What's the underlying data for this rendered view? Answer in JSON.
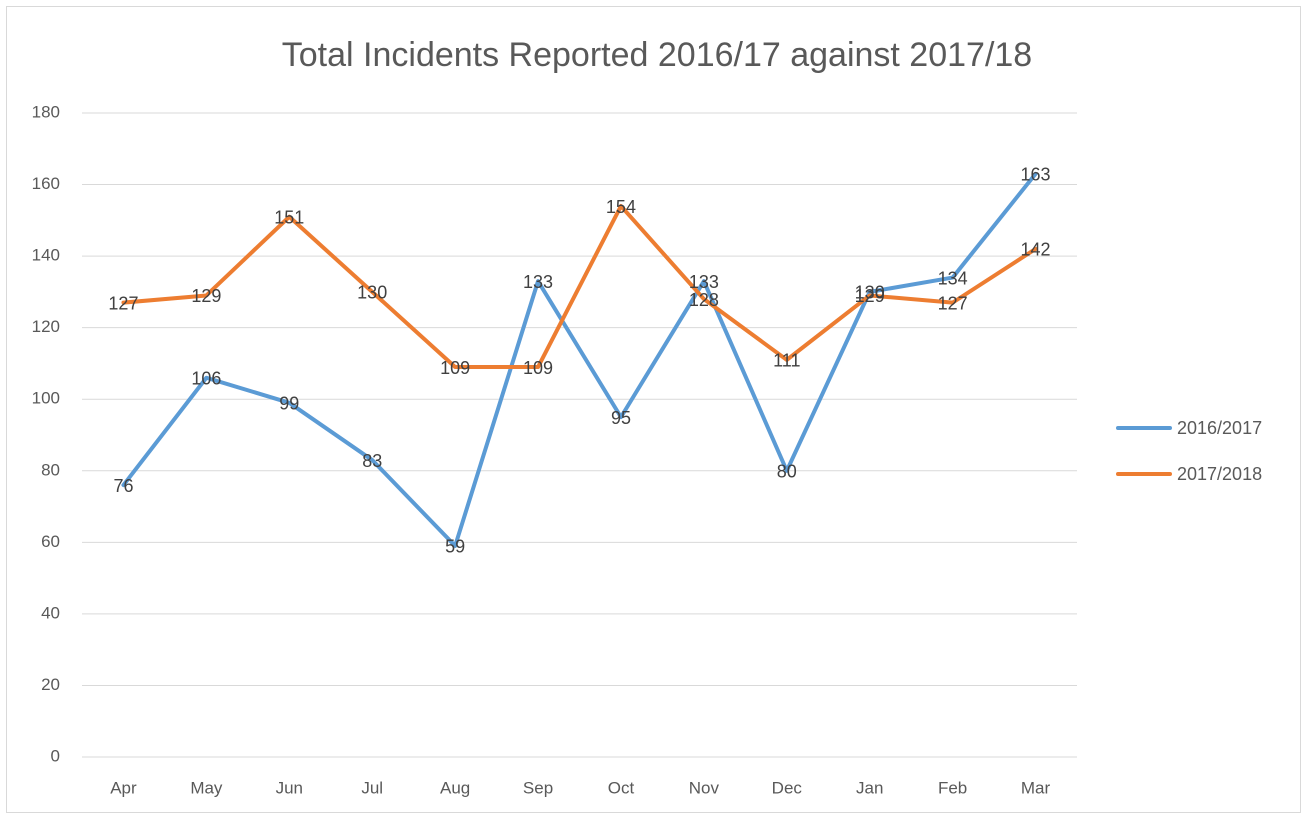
{
  "chart_data": {
    "type": "line",
    "title": "Total Incidents Reported 2016/17 against 2017/18",
    "categories": [
      "Apr",
      "May",
      "Jun",
      "Jul",
      "Aug",
      "Sep",
      "Oct",
      "Nov",
      "Dec",
      "Jan",
      "Feb",
      "Mar"
    ],
    "series": [
      {
        "name": "2016/2017",
        "color": "#5b9bd5",
        "values": [
          76,
          106,
          99,
          83,
          59,
          133,
          95,
          133,
          80,
          130,
          134,
          163
        ]
      },
      {
        "name": "2017/2018",
        "color": "#ed7d31",
        "values": [
          127,
          129,
          151,
          130,
          109,
          109,
          154,
          128,
          111,
          129,
          127,
          142
        ]
      }
    ],
    "ylim": [
      0,
      180
    ],
    "yticks": [
      0,
      20,
      40,
      60,
      80,
      100,
      120,
      140,
      160,
      180
    ],
    "grid": true,
    "legend": "right"
  }
}
